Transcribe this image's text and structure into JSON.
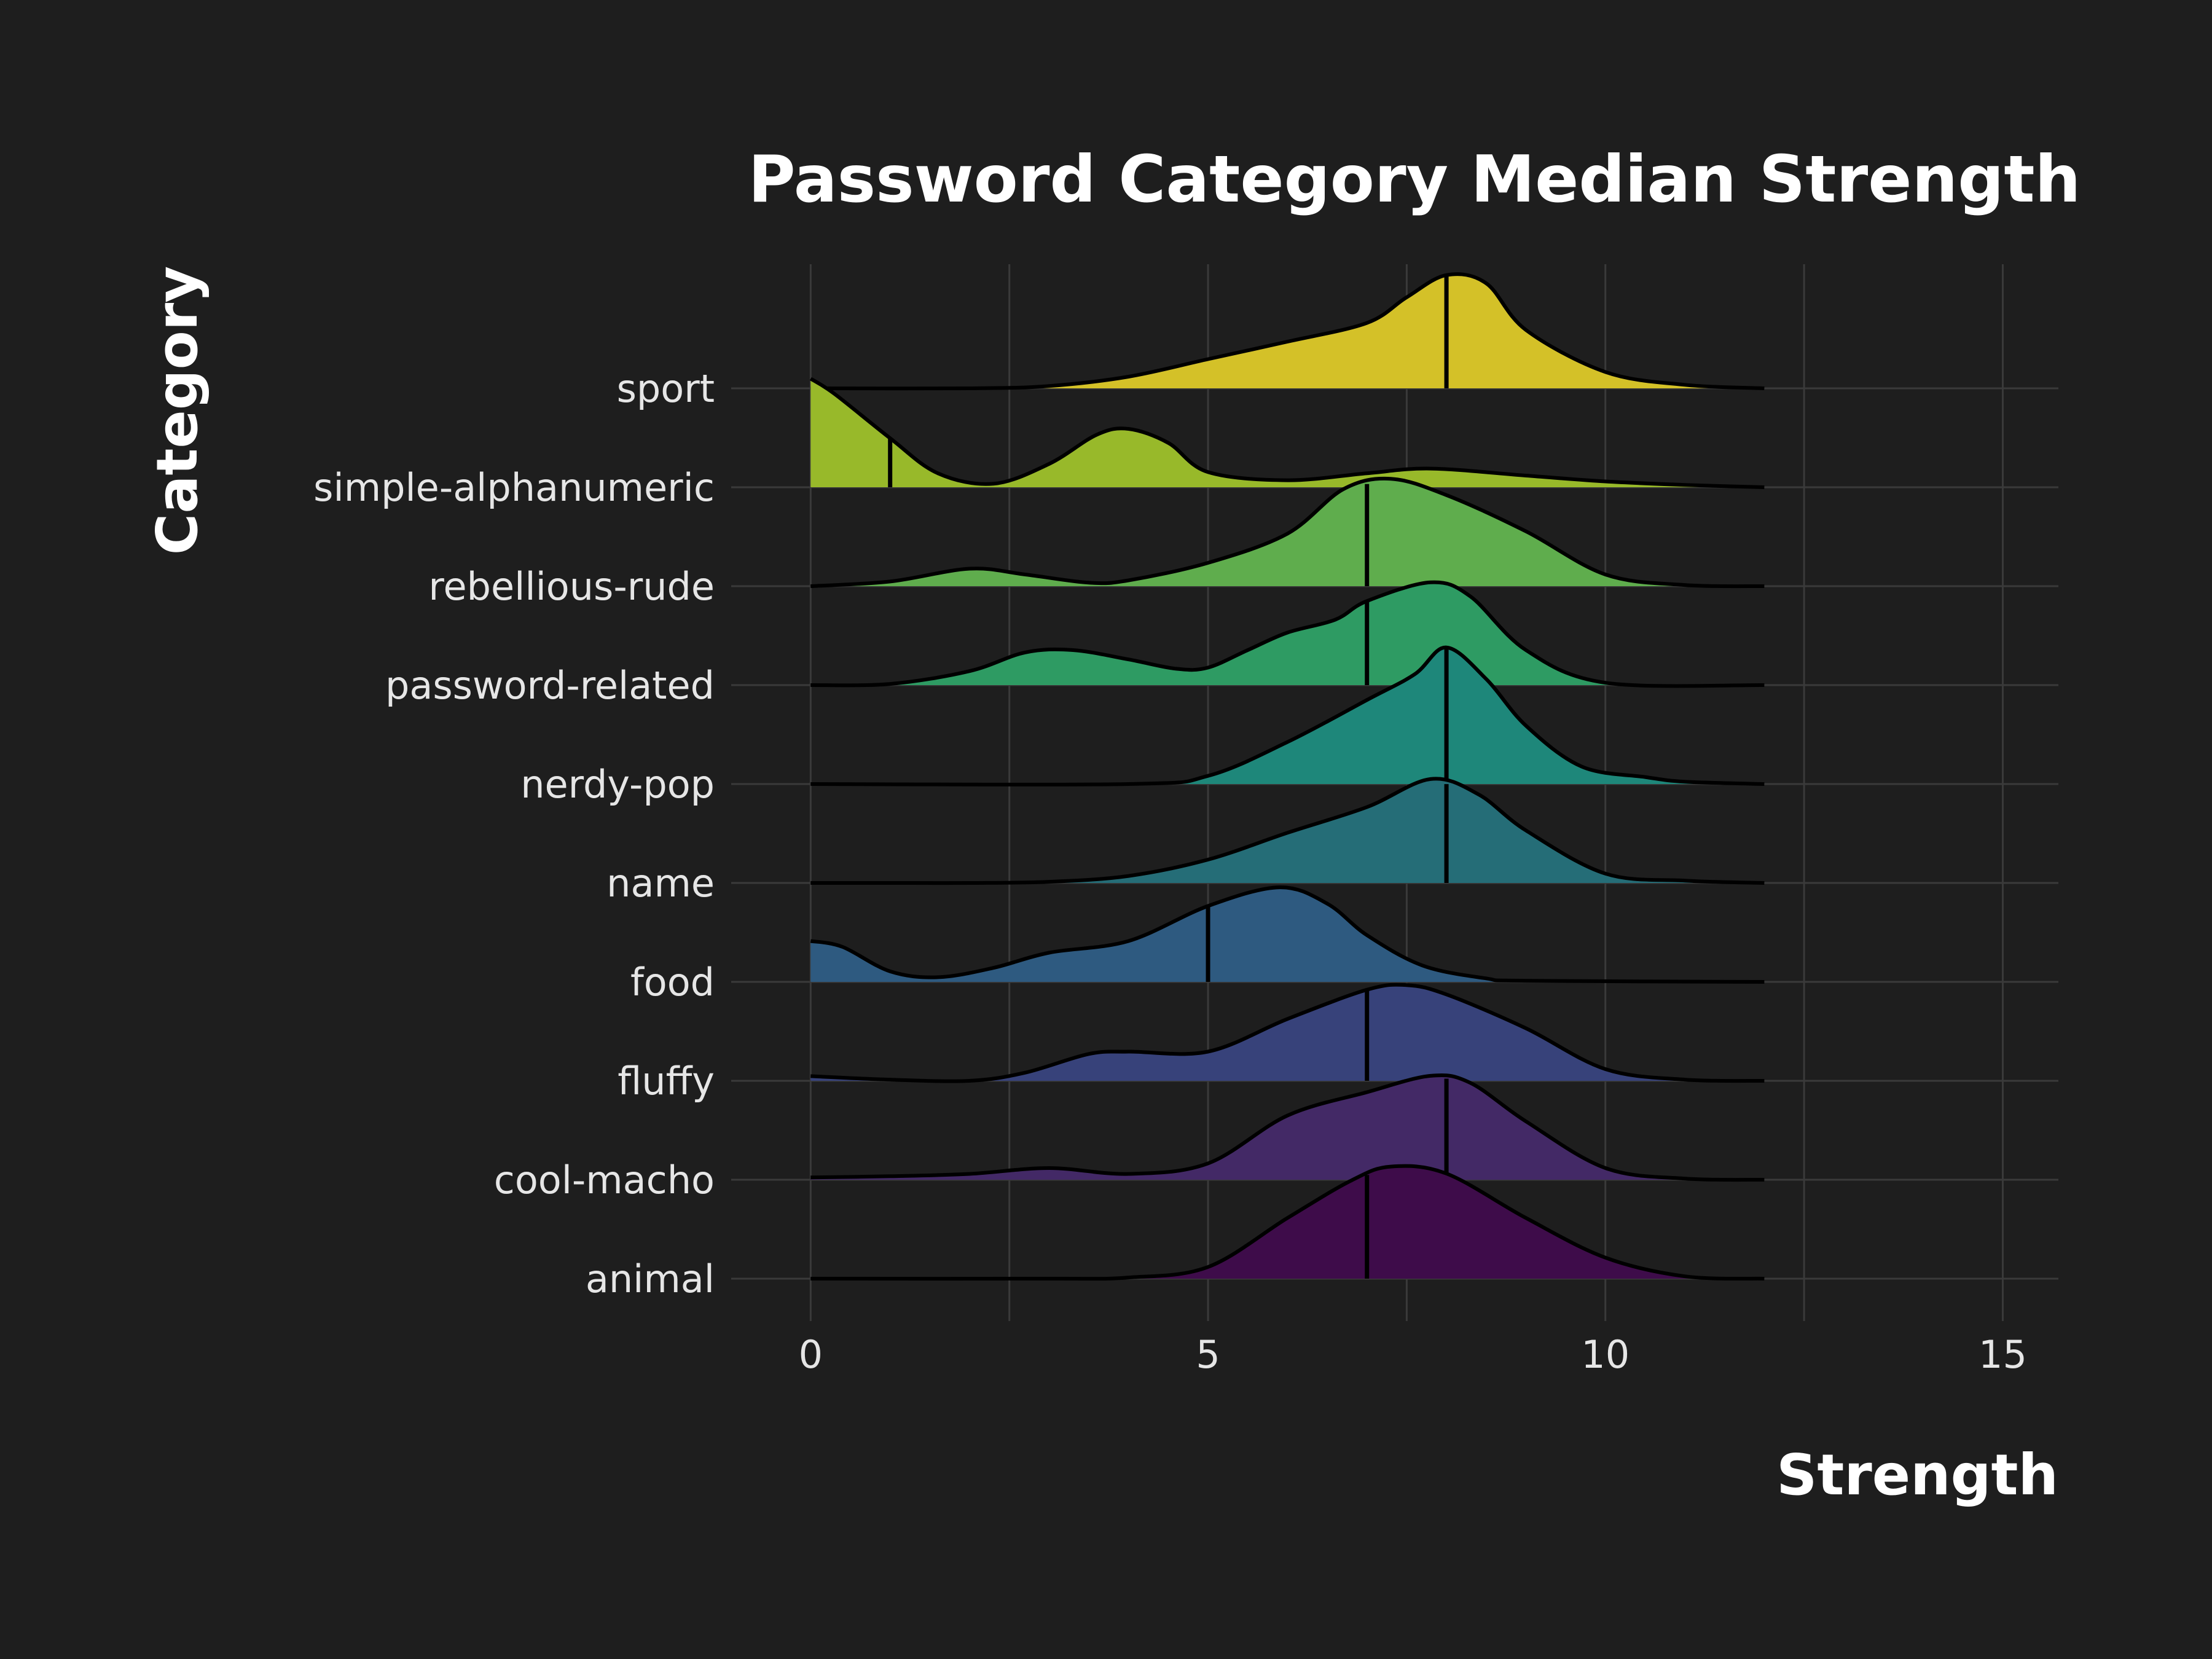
{
  "chart_data": {
    "type": "ridgeline",
    "title": "Password Category Median Strength",
    "xlabel": "Strength",
    "ylabel": "Category",
    "xlim": [
      -1,
      15.7
    ],
    "x_ticks": [
      0,
      5,
      10,
      15
    ],
    "grid": true,
    "categories": [
      "sport",
      "simple-alphanumeric",
      "rebellious-rude",
      "password-related",
      "nerdy-pop",
      "name",
      "food",
      "fluffy",
      "cool-macho",
      "animal"
    ],
    "series": [
      {
        "category": "sport",
        "median": 8,
        "color": "#d4c128",
        "density": [
          [
            0,
            0
          ],
          [
            2,
            0
          ],
          [
            3,
            0.02
          ],
          [
            4,
            0.1
          ],
          [
            5,
            0.25
          ],
          [
            6,
            0.4
          ],
          [
            7,
            0.56
          ],
          [
            7.5,
            0.78
          ],
          [
            8,
            0.97
          ],
          [
            8.5,
            0.9
          ],
          [
            9,
            0.5
          ],
          [
            10,
            0.14
          ],
          [
            11,
            0.03
          ],
          [
            12,
            0
          ]
        ]
      },
      {
        "category": "simple-alphanumeric",
        "median": 1,
        "color": "#98b92a",
        "density": [
          [
            0,
            0.93
          ],
          [
            0.3,
            0.8
          ],
          [
            1,
            0.42
          ],
          [
            1.6,
            0.12
          ],
          [
            2.3,
            0.03
          ],
          [
            3,
            0.2
          ],
          [
            3.6,
            0.45
          ],
          [
            4,
            0.5
          ],
          [
            4.5,
            0.38
          ],
          [
            5,
            0.13
          ],
          [
            6,
            0.06
          ],
          [
            7,
            0.12
          ],
          [
            7.8,
            0.16
          ],
          [
            9,
            0.1
          ],
          [
            10,
            0.05
          ],
          [
            11,
            0.02
          ],
          [
            12,
            0
          ]
        ]
      },
      {
        "category": "rebellious-rude",
        "median": 7,
        "color": "#5fad4d",
        "density": [
          [
            0,
            0
          ],
          [
            1,
            0.04
          ],
          [
            2,
            0.15
          ],
          [
            2.7,
            0.1
          ],
          [
            3.5,
            0.03
          ],
          [
            4,
            0.05
          ],
          [
            5,
            0.2
          ],
          [
            6,
            0.45
          ],
          [
            6.7,
            0.83
          ],
          [
            7.3,
            0.92
          ],
          [
            8,
            0.78
          ],
          [
            9,
            0.47
          ],
          [
            10,
            0.1
          ],
          [
            11,
            0.01
          ],
          [
            12,
            0
          ]
        ]
      },
      {
        "category": "password-related",
        "median": 7,
        "color": "#2e9b63",
        "density": [
          [
            0,
            0
          ],
          [
            1,
            0.01
          ],
          [
            2,
            0.12
          ],
          [
            2.7,
            0.28
          ],
          [
            3.3,
            0.3
          ],
          [
            4,
            0.22
          ],
          [
            4.6,
            0.14
          ],
          [
            5,
            0.15
          ],
          [
            5.5,
            0.3
          ],
          [
            6,
            0.45
          ],
          [
            6.6,
            0.56
          ],
          [
            7,
            0.72
          ],
          [
            7.8,
            0.88
          ],
          [
            8.3,
            0.76
          ],
          [
            9,
            0.3
          ],
          [
            10,
            0.02
          ],
          [
            12,
            0
          ]
        ]
      },
      {
        "category": "nerdy-pop",
        "median": 8,
        "color": "#1e877a",
        "density": [
          [
            0,
            0
          ],
          [
            4,
            0
          ],
          [
            5,
            0.07
          ],
          [
            6,
            0.36
          ],
          [
            7,
            0.72
          ],
          [
            7.6,
            0.94
          ],
          [
            8,
            1.17
          ],
          [
            8.5,
            0.9
          ],
          [
            9,
            0.5
          ],
          [
            9.7,
            0.15
          ],
          [
            10.5,
            0.06
          ],
          [
            11,
            0.02
          ],
          [
            12,
            0
          ]
        ]
      },
      {
        "category": "name",
        "median": 8,
        "color": "#256d77",
        "density": [
          [
            0,
            0
          ],
          [
            1,
            0
          ],
          [
            2,
            0
          ],
          [
            3,
            0.01
          ],
          [
            4,
            0.06
          ],
          [
            5,
            0.2
          ],
          [
            6,
            0.43
          ],
          [
            7,
            0.65
          ],
          [
            7.8,
            0.89
          ],
          [
            8.4,
            0.76
          ],
          [
            9,
            0.45
          ],
          [
            10,
            0.08
          ],
          [
            11,
            0.02
          ],
          [
            12,
            0
          ]
        ]
      },
      {
        "category": "food",
        "median": 5,
        "color": "#2e5a80",
        "density": [
          [
            0,
            0.35
          ],
          [
            0.4,
            0.3
          ],
          [
            1,
            0.09
          ],
          [
            1.6,
            0.04
          ],
          [
            2.3,
            0.12
          ],
          [
            3,
            0.25
          ],
          [
            4,
            0.35
          ],
          [
            5,
            0.65
          ],
          [
            5.9,
            0.81
          ],
          [
            6.5,
            0.67
          ],
          [
            7,
            0.4
          ],
          [
            7.7,
            0.14
          ],
          [
            8.5,
            0.03
          ],
          [
            9,
            0.01
          ],
          [
            12,
            0
          ]
        ]
      },
      {
        "category": "fluffy",
        "median": 7,
        "color": "#37427a",
        "density": [
          [
            0,
            0.04
          ],
          [
            1,
            0.01
          ],
          [
            2,
            0
          ],
          [
            2.7,
            0.07
          ],
          [
            3.5,
            0.23
          ],
          [
            4,
            0.25
          ],
          [
            5,
            0.25
          ],
          [
            6,
            0.53
          ],
          [
            7,
            0.78
          ],
          [
            7.5,
            0.82
          ],
          [
            8,
            0.74
          ],
          [
            9,
            0.45
          ],
          [
            10,
            0.1
          ],
          [
            11,
            0.01
          ],
          [
            12,
            0
          ]
        ]
      },
      {
        "category": "cool-macho",
        "median": 8,
        "color": "#432966",
        "density": [
          [
            0,
            0.02
          ],
          [
            1,
            0.03
          ],
          [
            2,
            0.05
          ],
          [
            3,
            0.1
          ],
          [
            4,
            0.05
          ],
          [
            5,
            0.14
          ],
          [
            6,
            0.55
          ],
          [
            7,
            0.75
          ],
          [
            7.8,
            0.89
          ],
          [
            8.3,
            0.83
          ],
          [
            9,
            0.5
          ],
          [
            10,
            0.1
          ],
          [
            11,
            0.01
          ],
          [
            12,
            0
          ]
        ]
      },
      {
        "category": "animal",
        "median": 7,
        "color": "#3e0c4a",
        "density": [
          [
            0,
            0
          ],
          [
            3,
            0
          ],
          [
            4,
            0.01
          ],
          [
            5,
            0.1
          ],
          [
            6,
            0.52
          ],
          [
            6.8,
            0.84
          ],
          [
            7.3,
            0.96
          ],
          [
            8,
            0.9
          ],
          [
            9,
            0.52
          ],
          [
            10,
            0.18
          ],
          [
            11,
            0.02
          ],
          [
            12,
            0
          ]
        ]
      }
    ]
  }
}
